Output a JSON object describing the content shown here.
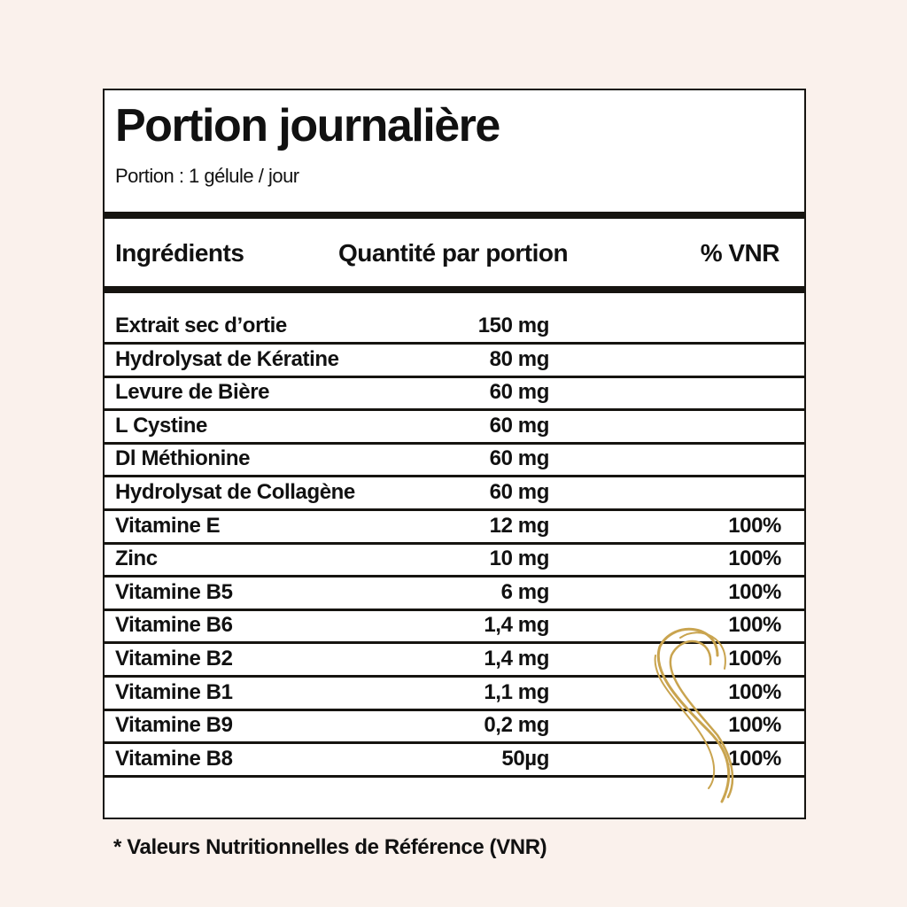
{
  "title": "Portion journalière",
  "serving": "Portion : 1 gélule / jour",
  "headers": {
    "ingredient": "Ingrédients",
    "quantity": "Quantité par portion",
    "vnr": "% VNR"
  },
  "rows": [
    {
      "name": "Extrait sec d’ortie",
      "qty": "150 mg",
      "vnr": ""
    },
    {
      "name": "Hydrolysat de Kératine",
      "qty": "80 mg",
      "vnr": ""
    },
    {
      "name": "Levure de Bière",
      "qty": "60 mg",
      "vnr": ""
    },
    {
      "name": "L Cystine",
      "qty": "60 mg",
      "vnr": ""
    },
    {
      "name": "Dl Méthionine",
      "qty": "60 mg",
      "vnr": ""
    },
    {
      "name": "Hydrolysat de Collagène",
      "qty": "60 mg",
      "vnr": ""
    },
    {
      "name": "Vitamine E",
      "qty": "12 mg",
      "vnr": "100%"
    },
    {
      "name": "Zinc",
      "qty": "10 mg",
      "vnr": "100%"
    },
    {
      "name": "Vitamine B5",
      "qty": "6 mg",
      "vnr": "100%"
    },
    {
      "name": "Vitamine B6",
      "qty": "1,4 mg",
      "vnr": "100%"
    },
    {
      "name": "Vitamine B2",
      "qty": "1,4 mg",
      "vnr": "100%"
    },
    {
      "name": "Vitamine B1",
      "qty": "1,1 mg",
      "vnr": "100%"
    },
    {
      "name": "Vitamine B9",
      "qty": "0,2 mg",
      "vnr": "100%"
    },
    {
      "name": "Vitamine B8",
      "qty": "50µg",
      "vnr": "100%"
    }
  ],
  "footnote": "* Valeurs Nutritionnelles de Référence (VNR)",
  "colors": {
    "background": "#faf1ec",
    "border": "#161410",
    "swirl": "#c9a44f"
  },
  "icons": {
    "decoration": "hair-swirl-icon"
  }
}
